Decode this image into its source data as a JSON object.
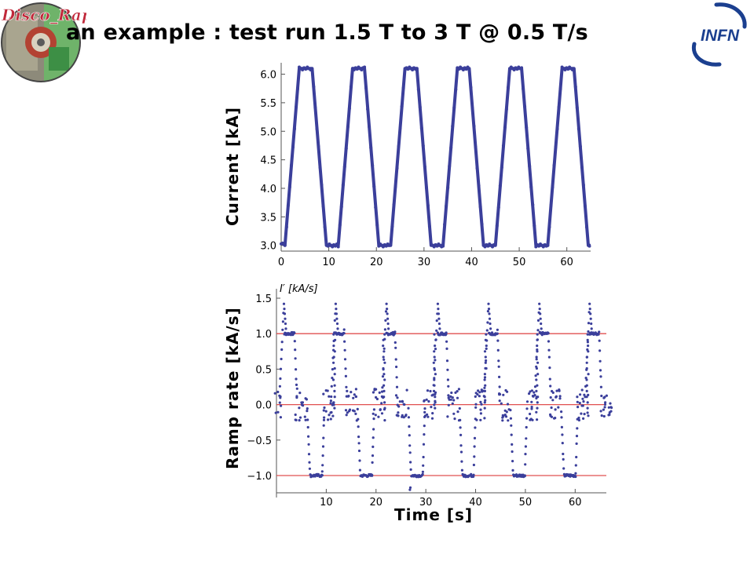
{
  "slide": {
    "title": "an example : test run 1.5 T to 3 T @ 0.5 T/s",
    "logo_left": {
      "text": "Disco_Rap",
      "icon": "disco-rap-logo-icon"
    },
    "logo_right": {
      "text": "INFN",
      "icon": "infn-logo-icon",
      "color": "#1b3f8f"
    }
  },
  "chart_data": [
    {
      "type": "line",
      "ylabel": "Current [kA]",
      "xlabel": "",
      "xlim": [
        0,
        65
      ],
      "ylim": [
        2.9,
        6.2
      ],
      "xticks": [
        0,
        10,
        20,
        30,
        40,
        50,
        60
      ],
      "yticks": [
        3.0,
        3.5,
        4.0,
        4.5,
        5.0,
        5.5,
        6.0
      ],
      "ytick_labels": [
        "3.0",
        "3.5",
        "4.0",
        "4.5",
        "5.0",
        "5.5",
        "6.0"
      ],
      "series": [
        {
          "color": "#3b3f9b",
          "x": [
            0,
            0.8,
            3.8,
            6.5,
            9.5,
            12.0,
            15.0,
            17.5,
            20.5,
            23.0,
            26.0,
            28.5,
            31.5,
            34.0,
            37.0,
            39.5,
            42.5,
            45.0,
            48.0,
            50.5,
            53.5,
            56.0,
            59.0,
            61.5,
            64.5,
            65.0
          ],
          "y": [
            3.05,
            3.0,
            6.1,
            6.1,
            3.0,
            3.0,
            6.1,
            6.1,
            3.0,
            3.0,
            6.1,
            6.1,
            3.0,
            3.0,
            6.1,
            6.1,
            3.0,
            3.0,
            6.1,
            6.1,
            3.0,
            3.0,
            6.1,
            6.1,
            3.0,
            3.0
          ]
        }
      ]
    },
    {
      "type": "scatter",
      "ylabel": "Ramp rate [kA/s]",
      "axis_annotation": "I′ [kA/s]",
      "xlabel": "Time [s]",
      "xlim": [
        0,
        65
      ],
      "ylim": [
        -1.2,
        1.55
      ],
      "xticks": [
        10,
        20,
        30,
        40,
        50,
        60
      ],
      "yticks": [
        -1.0,
        -0.5,
        0.0,
        0.5,
        1.0,
        1.5
      ],
      "ytick_labels": [
        "−1.0",
        "−0.5",
        "0.0",
        "0.5",
        "1.0",
        "1.5"
      ],
      "reference_lines": {
        "values": [
          1.0,
          0.0,
          -1.0
        ],
        "color": "#e05050"
      },
      "series": [
        {
          "color": "#3b3f9b",
          "plateau_up_x": [
            [
              1.3,
              3.6
            ],
            [
              11.6,
              13.6
            ],
            [
              21.8,
              23.8
            ],
            [
              32.1,
              34.1
            ],
            [
              42.4,
              44.4
            ],
            [
              52.6,
              54.6
            ],
            [
              62.6,
              64.8
            ]
          ],
          "plateau_down_x": [
            [
              6.8,
              9.2
            ],
            [
              16.9,
              19.2
            ],
            [
              27.1,
              29.4
            ],
            [
              37.4,
              39.6
            ],
            [
              47.6,
              49.9
            ],
            [
              57.8,
              60.1
            ]
          ],
          "peak_x": [
            1.5,
            11.9,
            22.1,
            32.4,
            42.6,
            52.8,
            62.9
          ],
          "peak_y": 1.42,
          "down_trough_x": 26.8,
          "down_trough_y": -1.2
        }
      ]
    }
  ]
}
